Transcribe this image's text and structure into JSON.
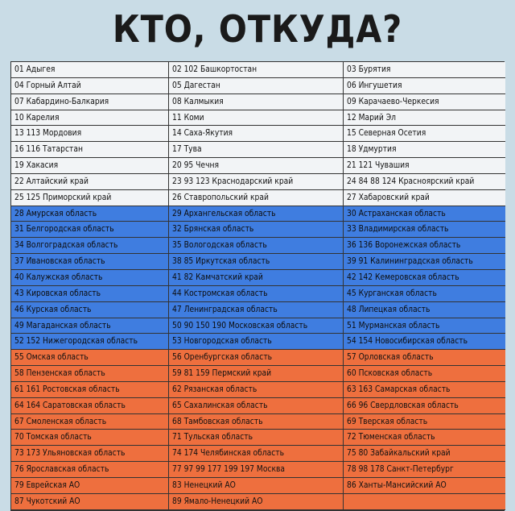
{
  "title": "КТО, ОТКУДА?",
  "rows": [
    {
      "band": "white",
      "cells": [
        "01 Адыгея",
        "02 102 Башкортостан",
        "03 Бурятия"
      ]
    },
    {
      "band": "white",
      "cells": [
        "04 Горный Алтай",
        "05 Дагестан",
        "06 Ингушетия"
      ]
    },
    {
      "band": "white",
      "cells": [
        "07 Кабардино-Балкария",
        "08 Калмыкия",
        "09 Карачаево-Черкесия"
      ]
    },
    {
      "band": "white",
      "cells": [
        "10 Карелия",
        "11 Коми",
        "12 Марий Эл"
      ]
    },
    {
      "band": "white",
      "cells": [
        "13 113 Мордовия",
        "14 Саха-Якутия",
        "15 Северная Осетия"
      ]
    },
    {
      "band": "white",
      "cells": [
        "16 116 Татарстан",
        "17 Тува",
        "18 Удмуртия"
      ]
    },
    {
      "band": "white",
      "cells": [
        "19 Хакасия",
        "20 95 Чечня",
        "21 121 Чувашия"
      ]
    },
    {
      "band": "white",
      "cells": [
        "22 Алтайский край",
        "23 93 123 Краснодарский край",
        "24 84 88 124 Красноярский край"
      ]
    },
    {
      "band": "white",
      "cells": [
        "25 125 Приморский край",
        "26 Ставропольский край",
        "27 Хабаровский край"
      ]
    },
    {
      "band": "blue",
      "cells": [
        "28 Амурская область",
        "29 Архангельская область",
        "30 Астраханская область"
      ]
    },
    {
      "band": "blue",
      "cells": [
        "31 Белгородская область",
        "32 Брянская область",
        "33 Владимирская область"
      ]
    },
    {
      "band": "blue",
      "cells": [
        "34 Волгоградская область",
        "35 Вологодская область",
        "36 136 Воронежская область"
      ]
    },
    {
      "band": "blue",
      "cells": [
        "37 Ивановская область",
        "38 85 Иркутская область",
        "39 91 Калининградская область"
      ]
    },
    {
      "band": "blue",
      "cells": [
        "40 Калужская область",
        "41 82 Камчатский край",
        "42 142 Кемеровская область"
      ]
    },
    {
      "band": "blue",
      "cells": [
        "43 Кировская область",
        "44 Костромская область",
        "45 Курганская область"
      ]
    },
    {
      "band": "blue",
      "cells": [
        "46 Курская область",
        "47 Ленинградская область",
        "48 Липецкая область"
      ]
    },
    {
      "band": "blue",
      "cells": [
        "49 Магаданская область",
        "50 90 150 190 Московская область",
        "51 Мурманская область"
      ]
    },
    {
      "band": "blue",
      "cells": [
        "52  152 Нижегородская область",
        "53 Новгородская область",
        "54 154 Новосибирская область"
      ]
    },
    {
      "band": "red",
      "cells": [
        "55 Омская область",
        "56 Оренбургская область",
        "57 Орловская область"
      ]
    },
    {
      "band": "red",
      "cells": [
        "58 Пензенская область",
        "59 81 159 Пермский край",
        "60 Псковская область"
      ]
    },
    {
      "band": "red",
      "cells": [
        "61 161 Ростовская область",
        "62 Рязанская область",
        "63 163 Самарская область"
      ]
    },
    {
      "band": "red",
      "cells": [
        "64 164 Саратовская область",
        "65 Сахалинская область",
        "66 96 Свердловская область"
      ]
    },
    {
      "band": "red",
      "cells": [
        "67 Смоленская область",
        "68 Тамбовская область",
        "69 Тверская область"
      ]
    },
    {
      "band": "red",
      "cells": [
        "70 Томская область",
        "71 Тульская область",
        "72 Тюменская область"
      ]
    },
    {
      "band": "red",
      "cells": [
        "73 173 Ульяновская область",
        "74 174 Челябинская область",
        "75 80 Забайкальский край"
      ]
    },
    {
      "band": "red",
      "cells": [
        "76 Ярославская область",
        "77 97 99 177 199 197 Москва",
        "78 98 178 Санкт-Петербург"
      ]
    },
    {
      "band": "red",
      "cells": [
        "79 Еврейская АО",
        "83 Ненецкий АО",
        "86 Ханты-Мансийский АО"
      ]
    },
    {
      "band": "red",
      "cells": [
        "87 Чукотский АО",
        "89 Ямало-Ненецкий АО",
        ""
      ]
    }
  ]
}
